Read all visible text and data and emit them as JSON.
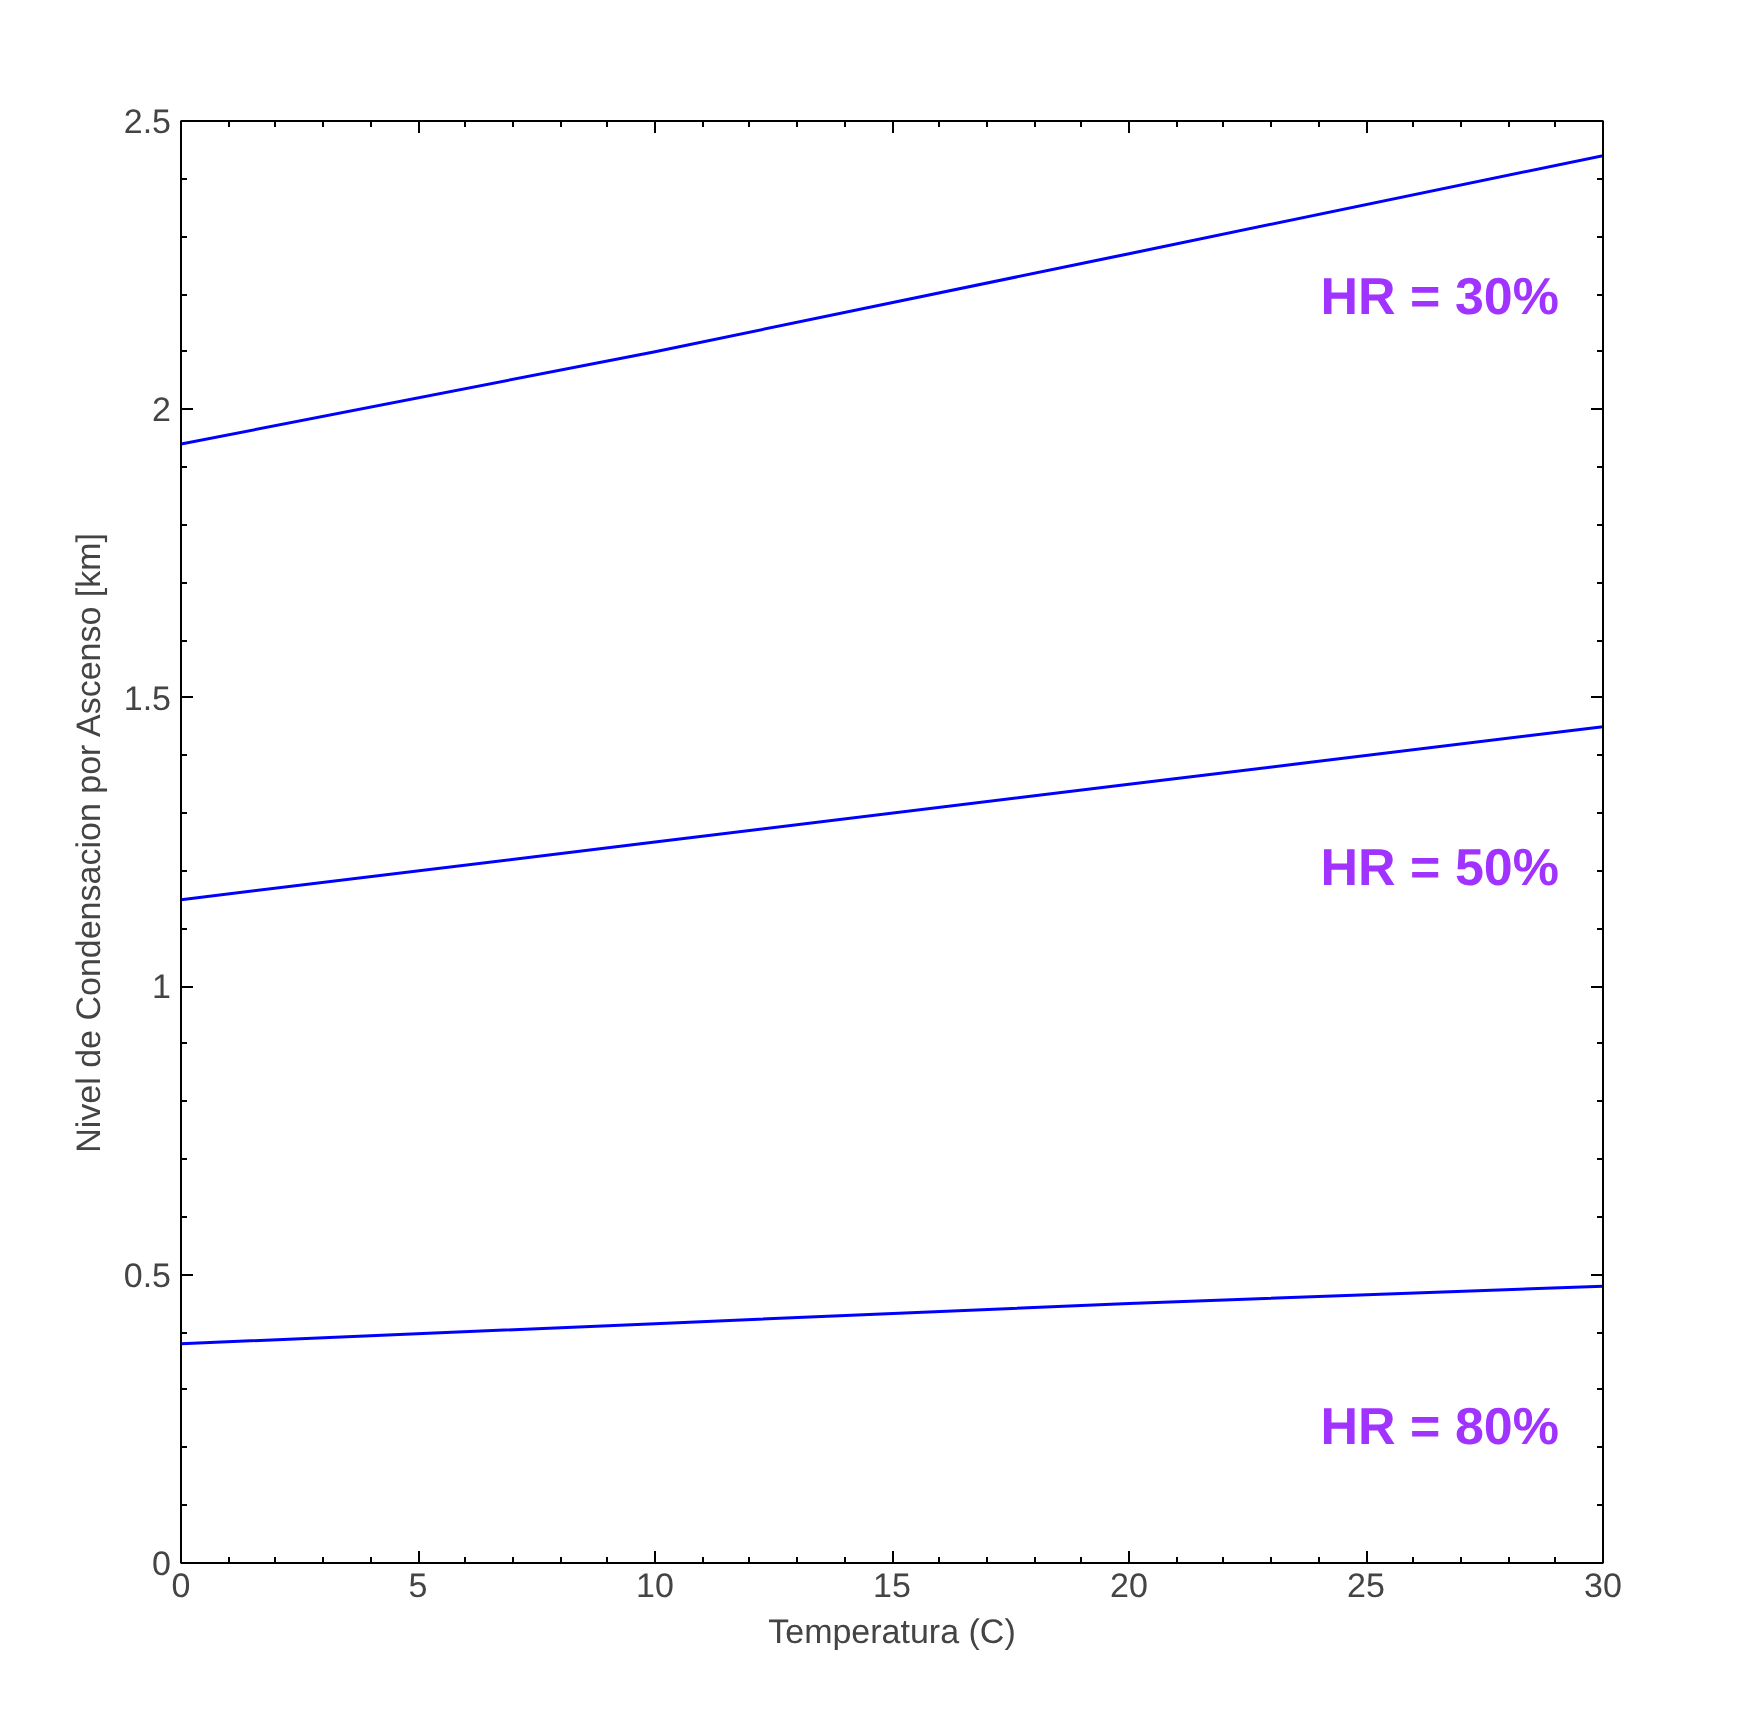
{
  "chart_data": {
    "type": "line",
    "xlabel": "Temperatura (C)",
    "ylabel": "Nivel de Condensacion por Ascenso [km]",
    "x": [
      0,
      10,
      20,
      30
    ],
    "series": [
      {
        "name": "HR = 30%",
        "color": "#0000ff",
        "values": [
          1.94,
          2.1,
          2.27,
          2.44
        ]
      },
      {
        "name": "HR = 50%",
        "color": "#0000ff",
        "values": [
          1.15,
          1.25,
          1.35,
          1.45
        ]
      },
      {
        "name": "HR = 80%",
        "color": "#0000ff",
        "values": [
          0.38,
          0.415,
          0.45,
          0.48
        ]
      }
    ],
    "xlim": [
      0,
      30
    ],
    "ylim": [
      0,
      2.5
    ],
    "xticks": [
      0,
      5,
      10,
      15,
      20,
      25,
      30
    ],
    "yticks": [
      0,
      0.5,
      1,
      1.5,
      2,
      2.5
    ],
    "grid": false,
    "marker": "none",
    "line_style": "solid"
  }
}
